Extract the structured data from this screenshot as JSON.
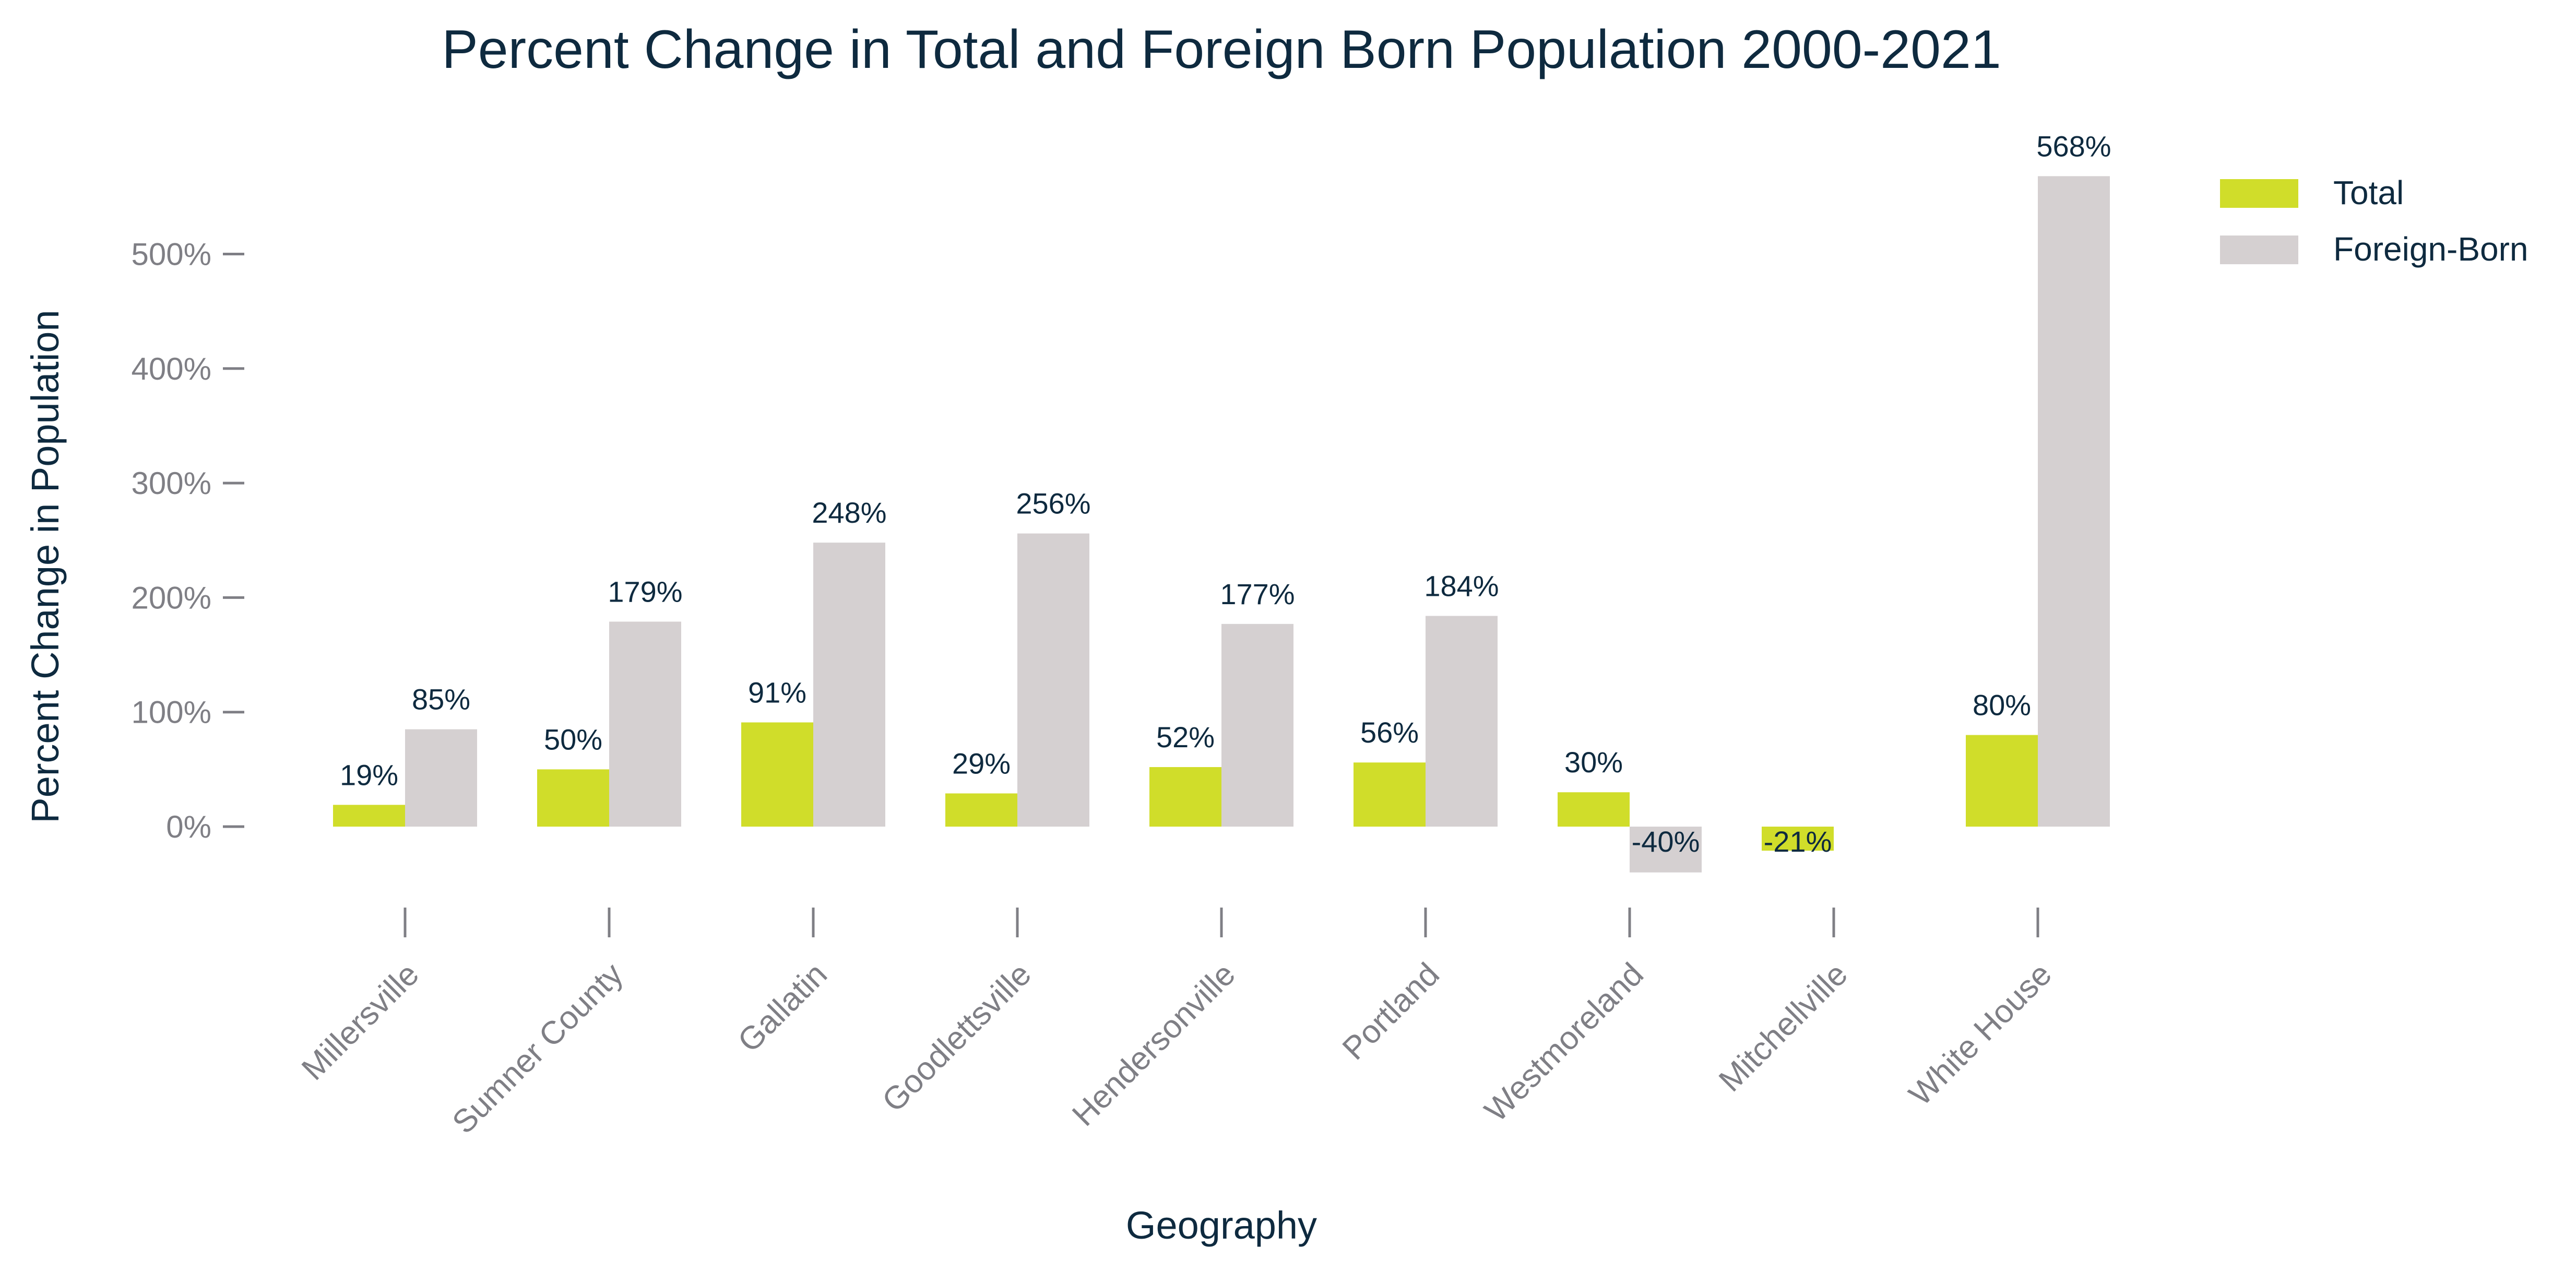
{
  "chart_data": {
    "type": "bar",
    "title": "Percent Change in Total and Foreign Born Population 2000-2021",
    "xlabel": "Geography",
    "ylabel": "Percent Change in Population",
    "categories": [
      "Millersville",
      "Sumner County",
      "Gallatin",
      "Goodlettsville",
      "Hendersonville",
      "Portland",
      "Westmoreland",
      "Mitchellville",
      "White House"
    ],
    "series": [
      {
        "name": "Total",
        "color": "#d0dd2a",
        "values": [
          19,
          50,
          91,
          29,
          52,
          56,
          30,
          -21,
          80
        ],
        "labels": [
          "19%",
          "50%",
          "91%",
          "29%",
          "52%",
          "56%",
          "30%",
          "-21%",
          "80%"
        ]
      },
      {
        "name": "Foreign-Born",
        "color": "#d5d0d1",
        "values": [
          85,
          179,
          248,
          256,
          177,
          184,
          -40,
          null,
          568
        ],
        "labels": [
          "85%",
          "179%",
          "248%",
          "256%",
          "177%",
          "184%",
          "-40%",
          "",
          "568%"
        ]
      }
    ],
    "ylim": [
      -75,
      610
    ],
    "yticks": [
      0,
      100,
      200,
      300,
      400,
      500
    ],
    "ytick_labels": [
      "0%",
      "100%",
      "200%",
      "300%",
      "400%",
      "500%"
    ],
    "grid": false,
    "legend_position": "top-right"
  }
}
